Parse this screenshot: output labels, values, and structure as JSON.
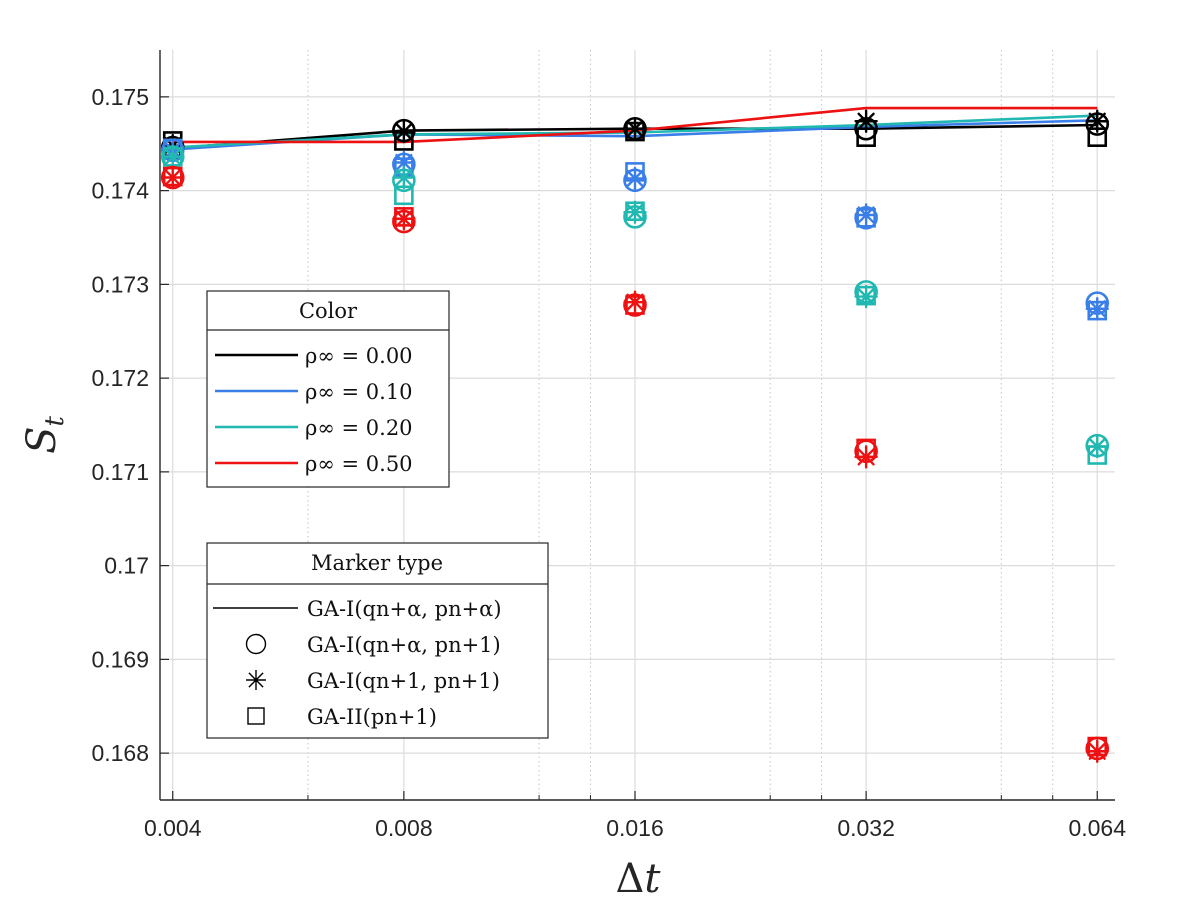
{
  "chart_data": {
    "type": "line",
    "x_scale": "log2",
    "xlabel_base": "Δ",
    "xlabel_var": "t",
    "ylabel_base": "S",
    "ylabel_sub": "t",
    "x_ticks": [
      0.004,
      0.008,
      0.016,
      0.032,
      0.064
    ],
    "x_tick_labels": [
      "0.004",
      "0.008",
      "0.016",
      "0.032",
      "0.064"
    ],
    "x_minor_ticks": [
      0.006,
      0.012,
      0.014,
      0.024,
      0.028,
      0.048,
      0.056
    ],
    "xlim": [
      0.00385,
      0.0675
    ],
    "y_ticks": [
      0.168,
      0.169,
      0.17,
      0.171,
      0.172,
      0.173,
      0.174,
      0.175
    ],
    "y_tick_labels": [
      "0.168",
      "0.169",
      "0.17",
      "0.171",
      "0.172",
      "0.173",
      "0.174",
      "0.175"
    ],
    "ylim": [
      0.1675,
      0.1755
    ],
    "grid": true,
    "color_legend": {
      "title": "Color",
      "entries": [
        {
          "label": "ρ∞ = 0.00",
          "color": "#000000"
        },
        {
          "label": "ρ∞ = 0.10",
          "color": "#3a7fe8"
        },
        {
          "label": "ρ∞ = 0.20",
          "color": "#20b8b0"
        },
        {
          "label": "ρ∞ = 0.50",
          "color": "#ee1111"
        }
      ]
    },
    "marker_legend": {
      "title": "Marker type",
      "entries": [
        {
          "marker": "line",
          "label": "GA-I(qn+α, pn+α)"
        },
        {
          "marker": "circle",
          "label": "GA-I(qn+α, pn+1)"
        },
        {
          "marker": "asterisk",
          "label": "GA-I(qn+1, pn+1)"
        },
        {
          "marker": "square",
          "label": "GA-II(pn+1)"
        }
      ]
    },
    "x": [
      0.004,
      0.008,
      0.016,
      0.032,
      0.064
    ],
    "series": [
      {
        "name": "ρ∞ = 0.00",
        "color": "#000000",
        "ga1_alpha_alpha": [
          0.17445,
          0.17464,
          0.17466,
          0.17466,
          0.1747
        ],
        "ga1_alpha_1": [
          0.17446,
          0.17464,
          0.17466,
          0.17466,
          0.17471
        ],
        "ga1_1_1": [
          0.17448,
          0.17463,
          0.17466,
          0.17474,
          0.17474
        ],
        "ga2_1": [
          0.17453,
          0.17453,
          0.17463,
          0.17457,
          0.17457
        ]
      },
      {
        "name": "ρ∞ = 0.10",
        "color": "#3a7fe8",
        "ga1_alpha_alpha": [
          0.17444,
          0.1746,
          0.17458,
          0.17468,
          0.17475
        ],
        "ga1_alpha_1": [
          0.17443,
          0.17428,
          0.17411,
          0.17371,
          0.1728
        ],
        "ga1_1_1": [
          0.17443,
          0.1743,
          0.17413,
          0.17374,
          0.17274
        ],
        "ga2_1": [
          0.17445,
          0.17425,
          0.1742,
          0.17371,
          0.17272
        ]
      },
      {
        "name": "ρ∞ = 0.20",
        "color": "#20b8b0",
        "ga1_alpha_alpha": [
          0.17446,
          0.1746,
          0.17462,
          0.1747,
          0.1748
        ],
        "ga1_alpha_1": [
          0.17436,
          0.17411,
          0.17372,
          0.17292,
          0.17128
        ],
        "ga1_1_1": [
          0.17436,
          0.17414,
          0.17377,
          0.17287,
          0.17127
        ],
        "ga2_1": [
          0.17436,
          0.17395,
          0.17378,
          0.17288,
          0.17118
        ]
      },
      {
        "name": "ρ∞ = 0.50",
        "color": "#ee1111",
        "ga1_alpha_alpha": [
          0.17452,
          0.17452,
          0.17464,
          0.17488,
          0.17488
        ],
        "ga1_alpha_1": [
          0.17414,
          0.17367,
          0.17278,
          0.17122,
          0.16805
        ],
        "ga1_1_1": [
          0.17414,
          0.1737,
          0.17281,
          0.17116,
          0.16802
        ],
        "ga2_1": [
          0.17415,
          0.17372,
          0.17278,
          0.17125,
          0.16807
        ]
      }
    ]
  }
}
